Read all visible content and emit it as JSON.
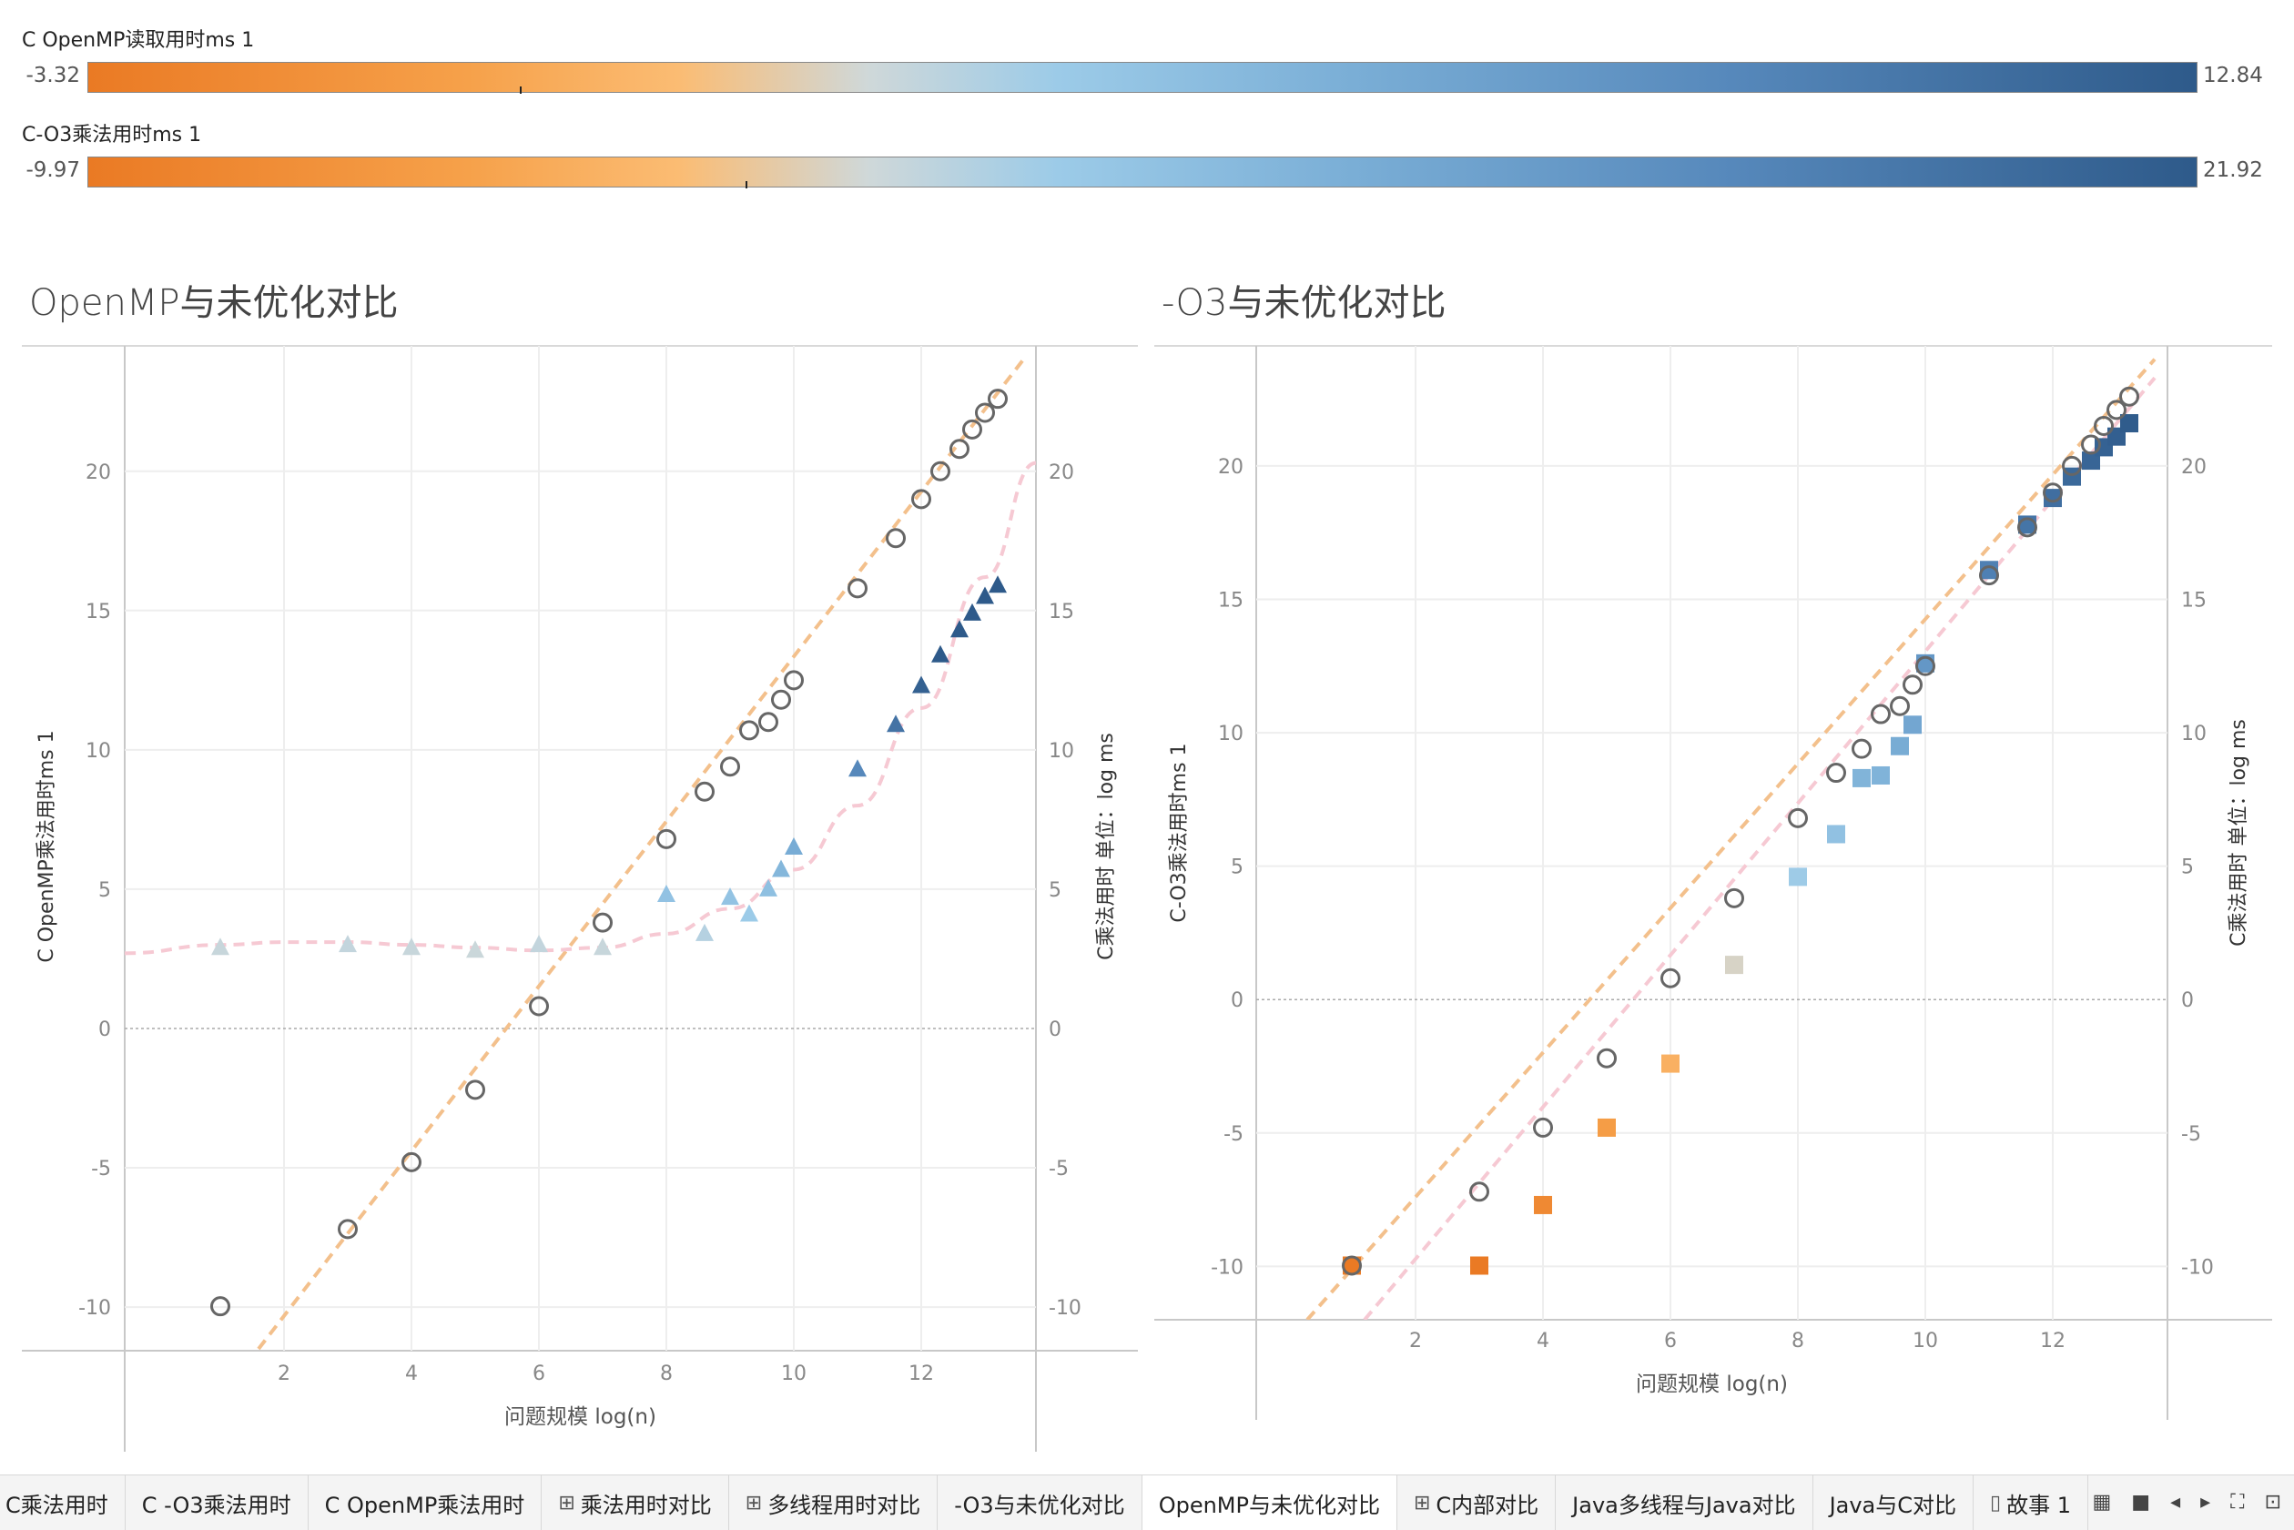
{
  "legends": [
    {
      "title": "C OpenMP读取用时ms 1",
      "min": "-3.32",
      "max": "12.84",
      "marker": 0.205
    },
    {
      "title": "C-O3乘法用时ms 1",
      "min": "-9.97",
      "max": "21.92",
      "marker": 0.312
    }
  ],
  "left_title": "OpenMP与未优化对比",
  "right_title": "-O3与未优化对比",
  "chart_data": [
    {
      "type": "scatter",
      "title": "OpenMP与未优化对比",
      "xlabel": "问题规模 log(n)",
      "ylabel": "C OpenMP乘法用时ms 1",
      "y2label": "C乘法用时 单位：log ms",
      "xlim": [
        -0.5,
        13.8
      ],
      "ylim": [
        -11.5,
        24.5
      ],
      "xticks": [
        2,
        4,
        6,
        8,
        10,
        12
      ],
      "yticks": [
        -10,
        -5,
        0,
        5,
        10,
        15,
        20
      ],
      "grid": true,
      "series": [
        {
          "marker": "circle",
          "x": [
            1,
            3,
            4,
            5,
            6,
            7,
            8,
            8.6,
            9,
            9.3,
            9.6,
            9.8,
            10,
            11,
            11.6,
            12,
            12.3,
            12.6,
            12.8,
            13,
            13.2
          ],
          "y": [
            -9.97,
            -7.2,
            -4.8,
            -2.2,
            0.8,
            3.8,
            6.8,
            8.5,
            9.4,
            10.7,
            11.0,
            11.8,
            12.5,
            15.8,
            17.6,
            19.0,
            20.0,
            20.8,
            21.5,
            22.1,
            22.6
          ]
        },
        {
          "marker": "triangle",
          "x": [
            1,
            3,
            4,
            5,
            6,
            7,
            8,
            8.6,
            9,
            9.3,
            9.6,
            9.8,
            10,
            11,
            11.6,
            12,
            12.3,
            12.6,
            12.8,
            13,
            13.2
          ],
          "y": [
            2.9,
            3.0,
            2.9,
            2.8,
            3.0,
            2.9,
            4.8,
            3.4,
            4.7,
            4.1,
            5.0,
            5.7,
            6.5,
            9.3,
            10.9,
            12.3,
            13.4,
            14.3,
            14.9,
            15.5,
            15.9
          ]
        }
      ],
      "trend": {
        "linear": {
          "x": [
            1.6,
            13.6
          ],
          "y": [
            -11.5,
            24.0
          ]
        },
        "poly": {
          "x": [
            -0.5,
            1,
            2,
            3,
            4,
            5,
            6,
            7,
            8,
            9,
            10,
            11,
            12,
            13,
            13.8
          ],
          "y": [
            2.7,
            3.0,
            3.1,
            3.1,
            3.0,
            2.9,
            2.8,
            2.9,
            3.4,
            4.3,
            5.7,
            8.0,
            11.5,
            16.2,
            20.3
          ]
        }
      }
    },
    {
      "type": "scatter",
      "title": "-O3与未优化对比",
      "xlabel": "问题规模 log(n)",
      "ylabel": "C-O3乘法用时ms 1",
      "y2label": "C乘法用时 单位：log ms",
      "xlim": [
        -0.5,
        13.8
      ],
      "ylim": [
        -12,
        24.5
      ],
      "xticks": [
        2,
        4,
        6,
        8,
        10,
        12
      ],
      "yticks": [
        -10,
        -5,
        0,
        5,
        10,
        15,
        20
      ],
      "grid": true,
      "series": [
        {
          "marker": "circle",
          "x": [
            1,
            3,
            4,
            5,
            6,
            7,
            8,
            8.6,
            9,
            9.3,
            9.6,
            9.8,
            10,
            11,
            11.6,
            12,
            12.3,
            12.6,
            12.8,
            13,
            13.2
          ],
          "y": [
            -9.97,
            -7.2,
            -4.8,
            -2.2,
            0.8,
            3.8,
            6.8,
            8.5,
            9.4,
            10.7,
            11.0,
            11.8,
            12.5,
            15.9,
            17.7,
            19.0,
            20.0,
            20.8,
            21.5,
            22.1,
            22.6
          ]
        },
        {
          "marker": "square",
          "x": [
            1,
            3,
            4,
            5,
            6,
            7,
            8,
            8.6,
            9,
            9.3,
            9.6,
            9.8,
            10,
            11,
            11.6,
            12,
            12.3,
            12.6,
            12.8,
            13,
            13.2
          ],
          "y": [
            -9.97,
            -9.97,
            -7.7,
            -4.8,
            -2.4,
            1.3,
            4.6,
            6.2,
            8.3,
            8.4,
            9.5,
            10.3,
            12.6,
            16.1,
            17.8,
            18.8,
            19.6,
            20.2,
            20.7,
            21.1,
            21.6
          ]
        }
      ],
      "trend": {
        "linear": {
          "x": [
            0.3,
            13.6
          ],
          "y": [
            -12.0,
            24.0
          ]
        },
        "linear2": {
          "x": [
            1.2,
            13.6
          ],
          "y": [
            -12.0,
            23.3
          ]
        }
      }
    }
  ],
  "tabs": [
    {
      "label": "C乘法用时",
      "icon": "",
      "active": false
    },
    {
      "label": "C -O3乘法用时",
      "icon": "",
      "active": false
    },
    {
      "label": "C OpenMP乘法用时",
      "icon": "",
      "active": false
    },
    {
      "label": "乘法用时对比",
      "icon": "⊞",
      "active": false
    },
    {
      "label": "多线程用时对比",
      "icon": "⊞",
      "active": false
    },
    {
      "label": "-O3与未优化对比",
      "icon": "",
      "active": false
    },
    {
      "label": "OpenMP与未优化对比",
      "icon": "",
      "active": true
    },
    {
      "label": "C内部对比",
      "icon": "⊞",
      "active": false
    },
    {
      "label": "Java多线程与Java对比",
      "icon": "",
      "active": false
    },
    {
      "label": "Java与C对比",
      "icon": "",
      "active": false
    },
    {
      "label": "故事 1",
      "icon": "▯",
      "active": false
    }
  ],
  "colors": {
    "circle": "#666666",
    "trend_orange": "#f3c08c",
    "trend_pink": "#f6c9d3"
  }
}
